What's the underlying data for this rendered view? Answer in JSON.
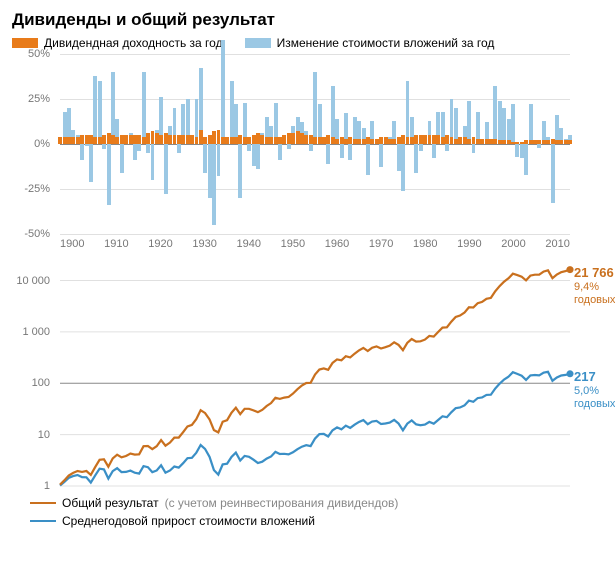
{
  "title": "Дивиденды и общий результат",
  "top_chart": {
    "type": "bar",
    "legend": {
      "dividend": {
        "label": "Дивидендная доходность за год",
        "color": "#e87b1a"
      },
      "price": {
        "label": "Изменение стоимости вложений за год",
        "color": "#9bc8e4"
      }
    },
    "ylim": [
      -50,
      50
    ],
    "ytick_step": 25,
    "ytick_suffix": "%",
    "grid_color": "#e0e0e0",
    "zero_color": "#888888",
    "x_start": 1896,
    "x_end": 2012,
    "x_tick_step": 10,
    "series": {
      "years": [
        1896,
        1897,
        1898,
        1899,
        1900,
        1901,
        1902,
        1903,
        1904,
        1905,
        1906,
        1907,
        1908,
        1909,
        1910,
        1911,
        1912,
        1913,
        1914,
        1915,
        1916,
        1917,
        1918,
        1919,
        1920,
        1921,
        1922,
        1923,
        1924,
        1925,
        1926,
        1927,
        1928,
        1929,
        1930,
        1931,
        1932,
        1933,
        1934,
        1935,
        1936,
        1937,
        1938,
        1939,
        1940,
        1941,
        1942,
        1943,
        1944,
        1945,
        1946,
        1947,
        1948,
        1949,
        1950,
        1951,
        1952,
        1953,
        1954,
        1955,
        1956,
        1957,
        1958,
        1959,
        1960,
        1961,
        1962,
        1963,
        1964,
        1965,
        1966,
        1967,
        1968,
        1969,
        1970,
        1971,
        1972,
        1973,
        1974,
        1975,
        1976,
        1977,
        1978,
        1979,
        1980,
        1981,
        1982,
        1983,
        1984,
        1985,
        1986,
        1987,
        1988,
        1989,
        1990,
        1991,
        1992,
        1993,
        1994,
        1995,
        1996,
        1997,
        1998,
        1999,
        2000,
        2001,
        2002,
        2003,
        2004,
        2005,
        2006,
        2007,
        2008,
        2009,
        2010,
        2011,
        2012
      ],
      "price_change": [
        2,
        18,
        20,
        8,
        5,
        -9,
        -1,
        -21,
        38,
        35,
        -3,
        -34,
        40,
        14,
        -16,
        1,
        6,
        -9,
        -4,
        40,
        -5,
        -20,
        8,
        26,
        -28,
        10,
        20,
        -5,
        22,
        25,
        2,
        25,
        42,
        -16,
        -30,
        -45,
        -18,
        58,
        3,
        35,
        22,
        -30,
        23,
        -4,
        -12,
        -14,
        6,
        15,
        10,
        23,
        -9,
        1,
        -3,
        10,
        15,
        12,
        7,
        -4,
        40,
        22,
        1,
        -11,
        32,
        14,
        -8,
        17,
        -9,
        15,
        13,
        9,
        -17,
        13,
        3,
        -13,
        2,
        4,
        13,
        -15,
        -26,
        35,
        15,
        -16,
        -4,
        3,
        13,
        -8,
        18,
        18,
        -4,
        25,
        20,
        3,
        10,
        24,
        -5,
        18,
        3,
        12,
        1,
        32,
        24,
        20,
        14,
        22,
        -7,
        -8,
        -17,
        22,
        2,
        -2,
        13,
        4,
        -33,
        16,
        9,
        3,
        5
      ],
      "dividend_yield": [
        4,
        4,
        4,
        4,
        4,
        5,
        5,
        5,
        4,
        4,
        5,
        6,
        5,
        4,
        5,
        5,
        5,
        5,
        5,
        4,
        6,
        7,
        6,
        5,
        6,
        5,
        5,
        5,
        5,
        5,
        5,
        4,
        8,
        4,
        5,
        7,
        8,
        4,
        4,
        4,
        4,
        5,
        4,
        4,
        5,
        6,
        5,
        4,
        4,
        4,
        4,
        5,
        6,
        6,
        7,
        6,
        5,
        5,
        4,
        4,
        4,
        5,
        4,
        3,
        4,
        3,
        4,
        3,
        3,
        3,
        4,
        3,
        3,
        4,
        4,
        3,
        3,
        4,
        5,
        4,
        4,
        5,
        5,
        5,
        5,
        5,
        5,
        4,
        5,
        4,
        3,
        4,
        4,
        3,
        4,
        3,
        3,
        3,
        3,
        3,
        2,
        2,
        2,
        1,
        1,
        1,
        2,
        2,
        2,
        2,
        2,
        2,
        3,
        2,
        2,
        2,
        2
      ]
    }
  },
  "bottom_chart": {
    "type": "line",
    "yscale": "log",
    "ylim": [
      1,
      30000
    ],
    "yticks": [
      1,
      10,
      100,
      1000,
      10000
    ],
    "ytick_labels": [
      "1",
      "10",
      "100",
      "1 000",
      "10 000"
    ],
    "x_start": 1896,
    "x_end": 2012,
    "ref_line_at": 100,
    "ref_line_color": "#888888",
    "grid_color": "#e0e0e0",
    "legend": {
      "total": {
        "label": "Общий результат",
        "note": "(с учетом реинвестирования дивидендов)",
        "color": "#c9701e"
      },
      "capital": {
        "label": "Среднегодовой прирост стоимости вложений",
        "color": "#3a8fc6"
      }
    },
    "callouts": {
      "total": {
        "value": "21 766",
        "sub": "9,4% годовых",
        "color": "#c9701e"
      },
      "capital": {
        "value": "217",
        "sub": "5,0% годовых",
        "color": "#3a8fc6"
      }
    }
  },
  "colors": {
    "axis_text": "#777777",
    "title_text": "#3a3a3a",
    "background": "#ffffff"
  }
}
